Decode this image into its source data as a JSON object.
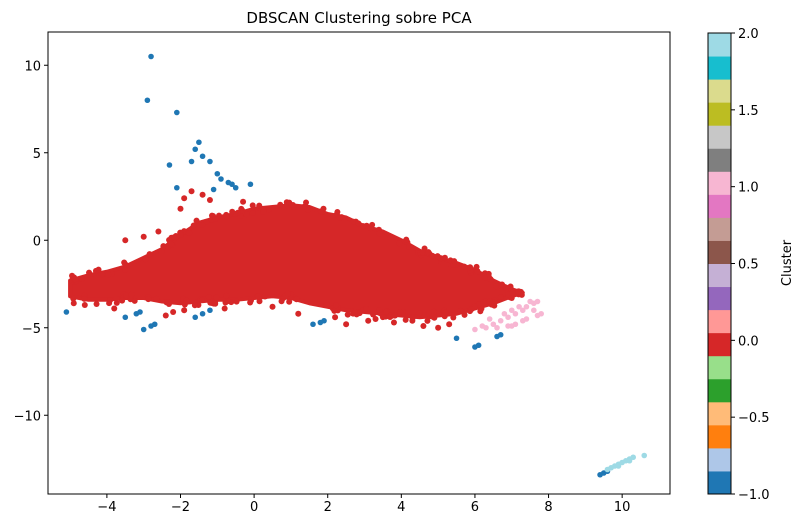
{
  "chart_data": {
    "type": "scatter",
    "title": "DBSCAN Clustering sobre PCA",
    "xlabel": "",
    "ylabel": "",
    "xlim": [
      -5.6,
      11.3
    ],
    "ylim": [
      -14.5,
      11.9
    ],
    "x_ticks": [
      -4,
      -2,
      0,
      2,
      4,
      6,
      8,
      10
    ],
    "x_tick_labels": [
      "−4",
      "−2",
      "0",
      "2",
      "4",
      "6",
      "8",
      "10"
    ],
    "y_ticks": [
      -10,
      -5,
      0,
      5,
      10
    ],
    "y_tick_labels": [
      "−10",
      "−5",
      "0",
      "5",
      "10"
    ],
    "grid": false,
    "colorbar": {
      "label": "Cluster",
      "range": [
        -1.0,
        2.0
      ],
      "ticks": [
        -1.0,
        -0.5,
        0.0,
        0.5,
        1.0,
        1.5,
        2.0
      ],
      "tick_labels": [
        "−1.0",
        "−0.5",
        "0.0",
        "0.5",
        "1.0",
        "1.5",
        "2.0"
      ],
      "colormap": "tab20",
      "colors": [
        "#1f77b4",
        "#aec7e8",
        "#ff7f0e",
        "#ffbb78",
        "#2ca02c",
        "#98df8a",
        "#d62728",
        "#ff9896",
        "#9467bd",
        "#c5b0d5",
        "#8c564b",
        "#c49c94",
        "#e377c2",
        "#f7b6d2",
        "#7f7f7f",
        "#c7c7c7",
        "#bcbd22",
        "#dbdb8d",
        "#17becf",
        "#9edae5"
      ]
    },
    "series": [
      {
        "cluster": -1,
        "color": "#1f77b4",
        "points": [
          [
            -2.8,
            10.5
          ],
          [
            -2.9,
            8.0
          ],
          [
            -2.1,
            7.3
          ],
          [
            -2.3,
            4.3
          ],
          [
            -1.7,
            4.5
          ],
          [
            -1.4,
            4.8
          ],
          [
            -1.5,
            5.6
          ],
          [
            -1.6,
            5.2
          ],
          [
            -1.2,
            4.5
          ],
          [
            -1.0,
            3.8
          ],
          [
            -0.9,
            3.5
          ],
          [
            -0.7,
            3.3
          ],
          [
            -0.6,
            3.2
          ],
          [
            -1.1,
            2.9
          ],
          [
            -0.5,
            3.0
          ],
          [
            -0.1,
            3.2
          ],
          [
            -2.1,
            3.0
          ],
          [
            -5.1,
            -4.1
          ],
          [
            -3.5,
            -4.4
          ],
          [
            -3.2,
            -4.2
          ],
          [
            -3.1,
            -4.1
          ],
          [
            -3.0,
            -5.1
          ],
          [
            -2.8,
            -4.9
          ],
          [
            -2.7,
            -4.8
          ],
          [
            -1.6,
            -4.4
          ],
          [
            -1.4,
            -4.2
          ],
          [
            -1.2,
            -4.0
          ],
          [
            1.6,
            -4.8
          ],
          [
            1.8,
            -4.7
          ],
          [
            1.9,
            -4.6
          ],
          [
            5.5,
            -5.6
          ],
          [
            6.0,
            -6.1
          ],
          [
            6.1,
            -6.0
          ],
          [
            6.6,
            -5.5
          ],
          [
            6.7,
            -5.4
          ],
          [
            9.4,
            -13.4
          ],
          [
            9.5,
            -13.3
          ],
          [
            9.6,
            -13.2
          ]
        ]
      },
      {
        "cluster": 1,
        "color": "#f7b6d2",
        "points": [
          [
            6.0,
            -5.1
          ],
          [
            6.3,
            -5.0
          ],
          [
            6.5,
            -4.8
          ],
          [
            6.7,
            -4.6
          ],
          [
            6.9,
            -4.4
          ],
          [
            7.1,
            -4.2
          ],
          [
            7.3,
            -4.0
          ],
          [
            7.4,
            -3.8
          ],
          [
            7.6,
            -3.6
          ],
          [
            7.7,
            -3.5
          ],
          [
            6.6,
            -5.0
          ],
          [
            6.9,
            -4.9
          ],
          [
            7.1,
            -4.8
          ],
          [
            7.4,
            -4.5
          ],
          [
            7.7,
            -4.3
          ],
          [
            7.8,
            -4.2
          ],
          [
            6.4,
            -4.5
          ],
          [
            6.8,
            -4.2
          ],
          [
            7.0,
            -4.0
          ],
          [
            7.2,
            -3.8
          ],
          [
            7.5,
            -3.5
          ],
          [
            7.0,
            -4.9
          ],
          [
            6.2,
            -4.9
          ],
          [
            7.3,
            -4.6
          ],
          [
            7.6,
            -4.0
          ]
        ]
      },
      {
        "cluster": 2,
        "color": "#9edae5",
        "points": [
          [
            9.6,
            -13.1
          ],
          [
            9.7,
            -13.0
          ],
          [
            9.8,
            -12.9
          ],
          [
            9.9,
            -12.8
          ],
          [
            10.0,
            -12.7
          ],
          [
            10.1,
            -12.6
          ],
          [
            10.2,
            -12.5
          ],
          [
            10.3,
            -12.4
          ],
          [
            10.6,
            -12.3
          ],
          [
            10.2,
            -12.6
          ],
          [
            9.9,
            -12.9
          ]
        ]
      },
      {
        "cluster": 0,
        "color": "#d62728",
        "shape": "dense_cloud",
        "upper_boundary": [
          [
            -5.0,
            -2.3
          ],
          [
            -4.5,
            -2.0
          ],
          [
            -4.0,
            -1.8
          ],
          [
            -3.5,
            -1.5
          ],
          [
            -3.0,
            -1.0
          ],
          [
            -2.5,
            -0.5
          ],
          [
            -2.0,
            0.3
          ],
          [
            -1.5,
            1.0
          ],
          [
            -1.0,
            1.3
          ],
          [
            -0.5,
            1.5
          ],
          [
            0.0,
            1.8
          ],
          [
            0.5,
            1.9
          ],
          [
            1.0,
            2.0
          ],
          [
            1.5,
            1.9
          ],
          [
            2.0,
            1.5
          ],
          [
            2.5,
            1.3
          ],
          [
            3.0,
            0.8
          ],
          [
            3.5,
            0.5
          ],
          [
            4.0,
            0.0
          ],
          [
            4.5,
            -0.6
          ],
          [
            5.0,
            -1.0
          ],
          [
            5.5,
            -1.3
          ],
          [
            6.0,
            -1.7
          ],
          [
            6.5,
            -2.3
          ],
          [
            7.0,
            -2.8
          ],
          [
            7.3,
            -3.0
          ]
        ],
        "lower_boundary": [
          [
            -5.0,
            -3.2
          ],
          [
            -4.5,
            -3.4
          ],
          [
            -4.0,
            -3.4
          ],
          [
            -3.5,
            -3.3
          ],
          [
            -3.0,
            -3.3
          ],
          [
            -2.5,
            -3.5
          ],
          [
            -2.0,
            -3.6
          ],
          [
            -1.5,
            -3.5
          ],
          [
            -1.0,
            -3.4
          ],
          [
            -0.5,
            -3.4
          ],
          [
            0.0,
            -3.3
          ],
          [
            0.5,
            -3.2
          ],
          [
            1.0,
            -3.3
          ],
          [
            1.5,
            -3.6
          ],
          [
            2.0,
            -3.8
          ],
          [
            2.5,
            -4.0
          ],
          [
            3.0,
            -4.1
          ],
          [
            3.5,
            -4.2
          ],
          [
            4.0,
            -4.3
          ],
          [
            4.5,
            -4.4
          ],
          [
            5.0,
            -4.3
          ],
          [
            5.5,
            -4.2
          ],
          [
            6.0,
            -3.9
          ],
          [
            6.5,
            -3.6
          ],
          [
            7.0,
            -3.2
          ],
          [
            7.3,
            -3.0
          ]
        ],
        "outliers": [
          [
            -1.7,
            2.8
          ],
          [
            -1.4,
            2.6
          ],
          [
            -1.9,
            2.4
          ],
          [
            -1.2,
            2.3
          ],
          [
            -2.0,
            1.8
          ],
          [
            -0.3,
            2.2
          ],
          [
            -3.5,
            0.0
          ],
          [
            -3.0,
            0.2
          ],
          [
            -2.6,
            0.5
          ],
          [
            -4.9,
            -3.6
          ],
          [
            -4.6,
            -3.7
          ],
          [
            -3.8,
            -3.9
          ],
          [
            -2.4,
            -4.3
          ],
          [
            -2.2,
            -4.1
          ],
          [
            -1.9,
            -4.0
          ],
          [
            -0.8,
            -3.9
          ],
          [
            0.5,
            -3.8
          ],
          [
            1.2,
            -4.2
          ],
          [
            2.5,
            -4.8
          ],
          [
            3.1,
            -4.6
          ],
          [
            3.8,
            -4.7
          ],
          [
            4.6,
            -4.9
          ],
          [
            5.0,
            -5.0
          ],
          [
            5.3,
            -4.8
          ],
          [
            6.4,
            -3.5
          ],
          [
            6.9,
            -3.1
          ],
          [
            7.0,
            -3.3
          ],
          [
            3.3,
            -4.5
          ],
          [
            2.2,
            -4.4
          ],
          [
            4.3,
            -4.6
          ]
        ]
      }
    ]
  }
}
